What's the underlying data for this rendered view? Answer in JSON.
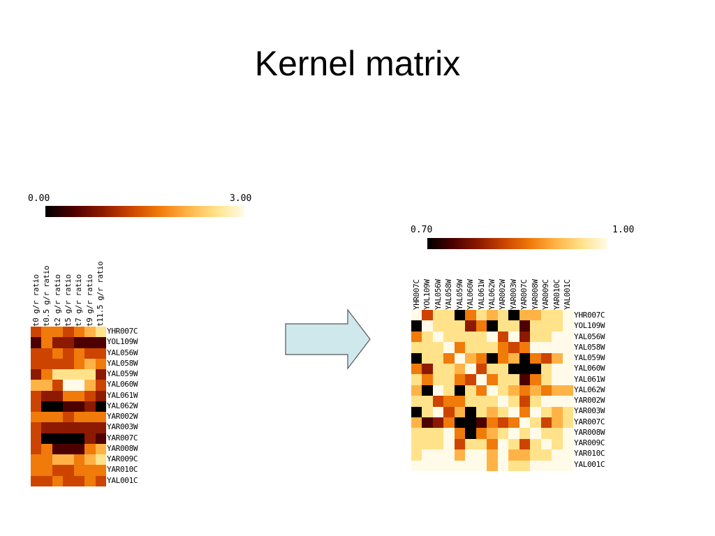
{
  "title": "Kernel matrix",
  "colors": {
    "scale_stops": [
      "#000000",
      "#4d0000",
      "#8c1a00",
      "#cc4400",
      "#f07a0a",
      "#ffb347",
      "#ffe28a",
      "#fffbe8"
    ],
    "arrow_fill": "#cfe8ec",
    "arrow_stroke": "#555555"
  },
  "icons": {
    "arrow": "right-arrow-icon"
  },
  "left_panel": {
    "scale_min": "0.00",
    "scale_max": "3.00",
    "columns": [
      "t0 g/r ratio",
      "t0.5 g/r ratio",
      "t2 g/r ratio",
      "t5 g/r ratio",
      "t7 g/r ratio",
      "t9 g/r ratio",
      "t11.5 g/r ratio"
    ],
    "rows": [
      "YHR007C",
      "YOL109W",
      "YAL056W",
      "YAL058W",
      "YAL059W",
      "YAL060W",
      "YAL061W",
      "YAL062W",
      "YAR002W",
      "YAR003W",
      "YAR007C",
      "YAR008W",
      "YAR009C",
      "YAR010C",
      "YAL001C"
    ],
    "levels": [
      [
        3,
        4,
        4,
        3,
        4,
        5,
        6
      ],
      [
        1,
        4,
        2,
        2,
        1,
        1,
        1
      ],
      [
        3,
        3,
        4,
        3,
        4,
        3,
        3
      ],
      [
        3,
        3,
        3,
        3,
        4,
        5,
        4
      ],
      [
        2,
        4,
        6,
        6,
        6,
        6,
        2
      ],
      [
        5,
        5,
        3,
        7,
        7,
        5,
        3
      ],
      [
        3,
        2,
        2,
        4,
        4,
        3,
        2
      ],
      [
        3,
        0,
        0,
        1,
        1,
        2,
        0
      ],
      [
        4,
        4,
        4,
        3,
        4,
        4,
        4
      ],
      [
        3,
        2,
        2,
        2,
        2,
        2,
        2
      ],
      [
        3,
        0,
        0,
        0,
        0,
        2,
        1
      ],
      [
        3,
        4,
        1,
        1,
        1,
        4,
        5
      ],
      [
        4,
        4,
        5,
        5,
        4,
        5,
        6
      ],
      [
        4,
        4,
        3,
        3,
        4,
        4,
        4
      ],
      [
        3,
        3,
        4,
        3,
        3,
        4,
        3
      ]
    ]
  },
  "right_panel": {
    "scale_min": "0.70",
    "scale_max": "1.00",
    "labels": [
      "YHR007C",
      "YOL109W",
      "YAL056W",
      "YAL058W",
      "YAL059W",
      "YAL060W",
      "YAL061W",
      "YAL062W",
      "YAR002W",
      "YAR003W",
      "YAR007C",
      "YAR008W",
      "YAR009C",
      "YAR010C",
      "YAL001C"
    ],
    "levels": [
      [
        7,
        3,
        6,
        6,
        0,
        4,
        6,
        5,
        6,
        0,
        5,
        5,
        6,
        6,
        7
      ],
      [
        0,
        7,
        6,
        6,
        6,
        2,
        4,
        0,
        6,
        6,
        1,
        6,
        6,
        6,
        7
      ],
      [
        4,
        6,
        7,
        6,
        6,
        6,
        6,
        7,
        3,
        7,
        2,
        6,
        6,
        7,
        7
      ],
      [
        6,
        6,
        6,
        7,
        4,
        6,
        6,
        6,
        4,
        3,
        4,
        7,
        7,
        7,
        7
      ],
      [
        0,
        6,
        6,
        4,
        7,
        5,
        4,
        0,
        4,
        5,
        0,
        4,
        3,
        5,
        7
      ],
      [
        4,
        2,
        6,
        6,
        5,
        7,
        3,
        6,
        6,
        0,
        0,
        0,
        6,
        7,
        7
      ],
      [
        6,
        4,
        6,
        6,
        4,
        3,
        7,
        4,
        6,
        6,
        1,
        4,
        6,
        7,
        7
      ],
      [
        5,
        0,
        7,
        6,
        0,
        6,
        4,
        7,
        6,
        5,
        4,
        5,
        4,
        5,
        5
      ],
      [
        6,
        6,
        3,
        4,
        4,
        6,
        6,
        6,
        7,
        6,
        3,
        6,
        7,
        7,
        7
      ],
      [
        0,
        6,
        7,
        3,
        5,
        0,
        6,
        5,
        6,
        7,
        4,
        7,
        6,
        5,
        6
      ],
      [
        5,
        1,
        2,
        4,
        0,
        0,
        1,
        4,
        3,
        4,
        7,
        6,
        3,
        5,
        6
      ],
      [
        6,
        6,
        6,
        7,
        4,
        0,
        4,
        5,
        6,
        7,
        6,
        7,
        6,
        6,
        7
      ],
      [
        6,
        6,
        6,
        7,
        3,
        6,
        6,
        4,
        7,
        6,
        3,
        6,
        7,
        6,
        7
      ],
      [
        6,
        7,
        7,
        7,
        5,
        7,
        7,
        5,
        7,
        5,
        5,
        6,
        6,
        7,
        7
      ],
      [
        7,
        7,
        7,
        7,
        7,
        7,
        7,
        5,
        7,
        6,
        6,
        7,
        7,
        7,
        7
      ]
    ]
  }
}
